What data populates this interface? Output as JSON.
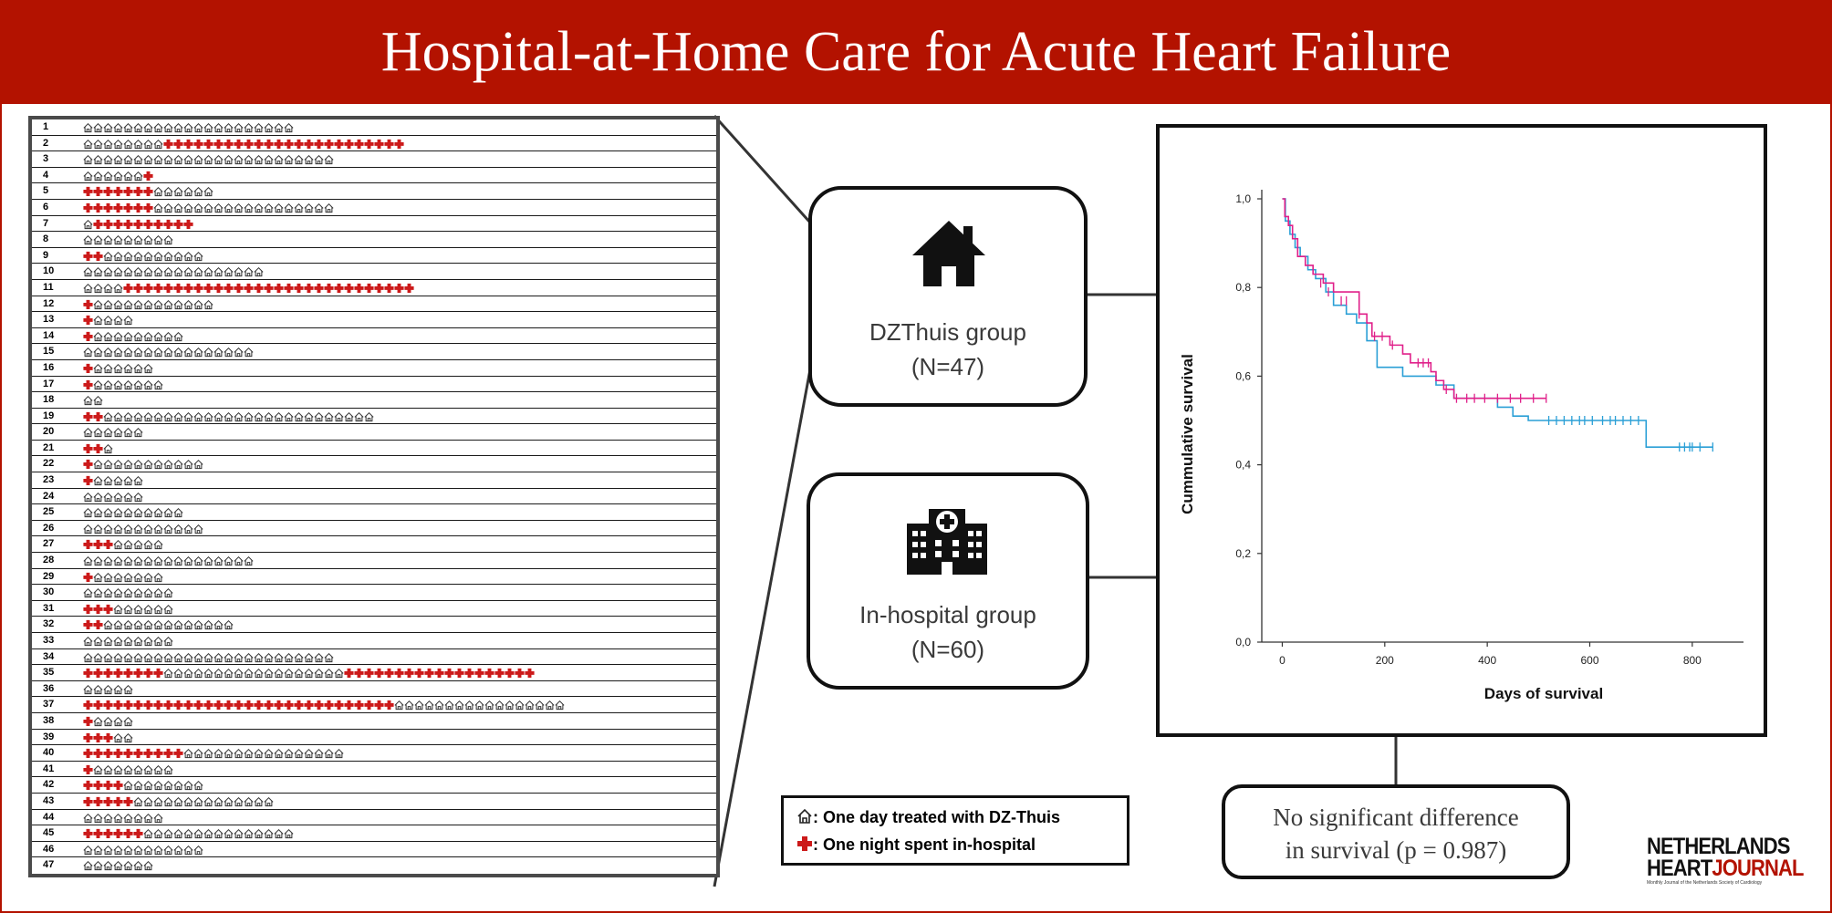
{
  "title": "Hospital-at-Home Care for Acute Heart Failure",
  "colors": {
    "brand_red": "#b31200",
    "cross_red": "#cc1a1a",
    "pink_series": "#e0208a",
    "blue_series": "#2a9fd6"
  },
  "patients": [
    {
      "id": "1",
      "segments": [
        [
          "H",
          21
        ]
      ]
    },
    {
      "id": "2",
      "segments": [
        [
          "H",
          8
        ],
        [
          "C",
          24
        ]
      ]
    },
    {
      "id": "3",
      "segments": [
        [
          "H",
          25
        ]
      ]
    },
    {
      "id": "4",
      "segments": [
        [
          "H",
          6
        ],
        [
          "C",
          1
        ]
      ]
    },
    {
      "id": "5",
      "segments": [
        [
          "C",
          7
        ],
        [
          "H",
          6
        ]
      ]
    },
    {
      "id": "6",
      "segments": [
        [
          "C",
          7
        ],
        [
          "H",
          18
        ]
      ]
    },
    {
      "id": "7",
      "segments": [
        [
          "H",
          1
        ],
        [
          "C",
          10
        ]
      ]
    },
    {
      "id": "8",
      "segments": [
        [
          "H",
          9
        ]
      ]
    },
    {
      "id": "9",
      "segments": [
        [
          "C",
          2
        ],
        [
          "H",
          10
        ]
      ]
    },
    {
      "id": "10",
      "segments": [
        [
          "H",
          18
        ]
      ]
    },
    {
      "id": "11",
      "segments": [
        [
          "H",
          4
        ],
        [
          "C",
          29
        ]
      ]
    },
    {
      "id": "12",
      "segments": [
        [
          "C",
          1
        ],
        [
          "H",
          12
        ]
      ]
    },
    {
      "id": "13",
      "segments": [
        [
          "C",
          1
        ],
        [
          "H",
          4
        ]
      ]
    },
    {
      "id": "14",
      "segments": [
        [
          "C",
          1
        ],
        [
          "H",
          9
        ]
      ]
    },
    {
      "id": "15",
      "segments": [
        [
          "H",
          17
        ]
      ]
    },
    {
      "id": "16",
      "segments": [
        [
          "C",
          1
        ],
        [
          "H",
          6
        ]
      ]
    },
    {
      "id": "17",
      "segments": [
        [
          "C",
          1
        ],
        [
          "H",
          7
        ]
      ]
    },
    {
      "id": "18",
      "segments": [
        [
          "H",
          2
        ]
      ]
    },
    {
      "id": "19",
      "segments": [
        [
          "C",
          2
        ],
        [
          "H",
          27
        ]
      ]
    },
    {
      "id": "20",
      "segments": [
        [
          "H",
          6
        ]
      ]
    },
    {
      "id": "21",
      "segments": [
        [
          "C",
          2
        ],
        [
          "H",
          1
        ]
      ]
    },
    {
      "id": "22",
      "segments": [
        [
          "C",
          1
        ],
        [
          "H",
          11
        ]
      ]
    },
    {
      "id": "23",
      "segments": [
        [
          "C",
          1
        ],
        [
          "H",
          5
        ]
      ]
    },
    {
      "id": "24",
      "segments": [
        [
          "H",
          6
        ]
      ]
    },
    {
      "id": "25",
      "segments": [
        [
          "H",
          10
        ]
      ]
    },
    {
      "id": "26",
      "segments": [
        [
          "H",
          12
        ]
      ]
    },
    {
      "id": "27",
      "segments": [
        [
          "C",
          3
        ],
        [
          "H",
          5
        ]
      ]
    },
    {
      "id": "28",
      "segments": [
        [
          "H",
          17
        ]
      ]
    },
    {
      "id": "29",
      "segments": [
        [
          "C",
          1
        ],
        [
          "H",
          7
        ]
      ]
    },
    {
      "id": "30",
      "segments": [
        [
          "H",
          9
        ]
      ]
    },
    {
      "id": "31",
      "segments": [
        [
          "C",
          3
        ],
        [
          "H",
          6
        ]
      ]
    },
    {
      "id": "32",
      "segments": [
        [
          "C",
          2
        ],
        [
          "H",
          13
        ]
      ]
    },
    {
      "id": "33",
      "segments": [
        [
          "H",
          9
        ]
      ]
    },
    {
      "id": "34",
      "segments": [
        [
          "H",
          25
        ]
      ]
    },
    {
      "id": "35",
      "segments": [
        [
          "C",
          8
        ],
        [
          "H",
          18
        ],
        [
          "C",
          19
        ]
      ]
    },
    {
      "id": "36",
      "segments": [
        [
          "H",
          5
        ]
      ]
    },
    {
      "id": "37",
      "segments": [
        [
          "C",
          31
        ],
        [
          "H",
          17
        ]
      ]
    },
    {
      "id": "38",
      "segments": [
        [
          "C",
          1
        ],
        [
          "H",
          4
        ]
      ]
    },
    {
      "id": "39",
      "segments": [
        [
          "C",
          3
        ],
        [
          "H",
          2
        ]
      ]
    },
    {
      "id": "40",
      "segments": [
        [
          "C",
          10
        ],
        [
          "H",
          16
        ]
      ]
    },
    {
      "id": "41",
      "segments": [
        [
          "C",
          1
        ],
        [
          "H",
          8
        ]
      ]
    },
    {
      "id": "42",
      "segments": [
        [
          "C",
          4
        ],
        [
          "H",
          8
        ]
      ]
    },
    {
      "id": "43",
      "segments": [
        [
          "C",
          5
        ],
        [
          "H",
          14
        ]
      ]
    },
    {
      "id": "44",
      "segments": [
        [
          "H",
          8
        ]
      ]
    },
    {
      "id": "45",
      "segments": [
        [
          "C",
          6
        ],
        [
          "H",
          15
        ]
      ]
    },
    {
      "id": "46",
      "segments": [
        [
          "H",
          12
        ]
      ]
    },
    {
      "id": "47",
      "segments": [
        [
          "H",
          7
        ]
      ]
    }
  ],
  "groups": {
    "home": {
      "icon": "house-icon",
      "name": "DZThuis group",
      "n": "(N=47)"
    },
    "hospital": {
      "icon": "hospital-icon",
      "name": "In-hospital group",
      "n": "(N=60)"
    }
  },
  "legend": {
    "home_icon": "house-outline-icon",
    "home_label": ": One day treated with DZ-Thuis",
    "cross_icon": "red-cross-icon",
    "cross_label": ":   One night spent in-hospital"
  },
  "result": {
    "line1": "No significant difference",
    "line2": "in survival (p = 0.987)"
  },
  "logo": {
    "line1": "NETHERLANDS",
    "line2_black": "HEART",
    "line2_red": "JOURNAL",
    "tagline": "Monthly Journal of the Netherlands Society of Cardiology"
  },
  "chart_data": {
    "type": "line",
    "xlabel": "Days of survival",
    "ylabel": "Cummulative survival",
    "xlim": [
      -40,
      900
    ],
    "ylim": [
      0,
      1.0
    ],
    "xticks": [
      0,
      200,
      400,
      600,
      800
    ],
    "yticks": [
      0,
      0.2,
      0.4,
      0.6,
      0.8,
      1.0
    ],
    "ytick_labels": [
      "0,0",
      "0,2",
      "0,4",
      "0,6",
      "0,8",
      "1,0"
    ],
    "grid": false,
    "series": [
      {
        "color": "#e0208a",
        "points": [
          [
            0,
            1.0
          ],
          [
            5,
            0.96
          ],
          [
            12,
            0.94
          ],
          [
            20,
            0.91
          ],
          [
            30,
            0.87
          ],
          [
            45,
            0.85
          ],
          [
            60,
            0.83
          ],
          [
            80,
            0.81
          ],
          [
            100,
            0.79
          ],
          [
            150,
            0.74
          ],
          [
            165,
            0.72
          ],
          [
            175,
            0.69
          ],
          [
            210,
            0.67
          ],
          [
            235,
            0.65
          ],
          [
            250,
            0.63
          ],
          [
            290,
            0.61
          ],
          [
            300,
            0.59
          ],
          [
            315,
            0.57
          ],
          [
            335,
            0.55
          ],
          [
            515,
            0.55
          ]
        ],
        "censored": [
          [
            75,
            0.81
          ],
          [
            90,
            0.79
          ],
          [
            115,
            0.77
          ],
          [
            125,
            0.77
          ],
          [
            150,
            0.74
          ],
          [
            180,
            0.69
          ],
          [
            195,
            0.69
          ],
          [
            215,
            0.67
          ],
          [
            265,
            0.63
          ],
          [
            275,
            0.63
          ],
          [
            285,
            0.63
          ],
          [
            320,
            0.57
          ],
          [
            340,
            0.55
          ],
          [
            360,
            0.55
          ],
          [
            375,
            0.55
          ],
          [
            395,
            0.55
          ],
          [
            420,
            0.55
          ],
          [
            445,
            0.55
          ],
          [
            465,
            0.55
          ],
          [
            490,
            0.55
          ],
          [
            515,
            0.55
          ]
        ]
      },
      {
        "color": "#2a9fd6",
        "points": [
          [
            0,
            1.0
          ],
          [
            6,
            0.95
          ],
          [
            15,
            0.92
          ],
          [
            25,
            0.89
          ],
          [
            35,
            0.87
          ],
          [
            50,
            0.84
          ],
          [
            65,
            0.82
          ],
          [
            85,
            0.79
          ],
          [
            100,
            0.76
          ],
          [
            125,
            0.74
          ],
          [
            145,
            0.72
          ],
          [
            165,
            0.68
          ],
          [
            185,
            0.62
          ],
          [
            220,
            0.62
          ],
          [
            235,
            0.6
          ],
          [
            265,
            0.6
          ],
          [
            300,
            0.58
          ],
          [
            335,
            0.55
          ],
          [
            410,
            0.55
          ],
          [
            420,
            0.53
          ],
          [
            440,
            0.53
          ],
          [
            450,
            0.51
          ],
          [
            475,
            0.51
          ],
          [
            480,
            0.5
          ],
          [
            700,
            0.5
          ],
          [
            710,
            0.44
          ],
          [
            840,
            0.44
          ]
        ],
        "censored": [
          [
            520,
            0.5
          ],
          [
            535,
            0.5
          ],
          [
            550,
            0.5
          ],
          [
            565,
            0.5
          ],
          [
            580,
            0.5
          ],
          [
            590,
            0.5
          ],
          [
            605,
            0.5
          ],
          [
            625,
            0.5
          ],
          [
            640,
            0.5
          ],
          [
            650,
            0.5
          ],
          [
            665,
            0.5
          ],
          [
            680,
            0.5
          ],
          [
            695,
            0.5
          ],
          [
            775,
            0.44
          ],
          [
            785,
            0.44
          ],
          [
            795,
            0.44
          ],
          [
            800,
            0.44
          ],
          [
            815,
            0.44
          ],
          [
            840,
            0.44
          ]
        ]
      }
    ]
  }
}
